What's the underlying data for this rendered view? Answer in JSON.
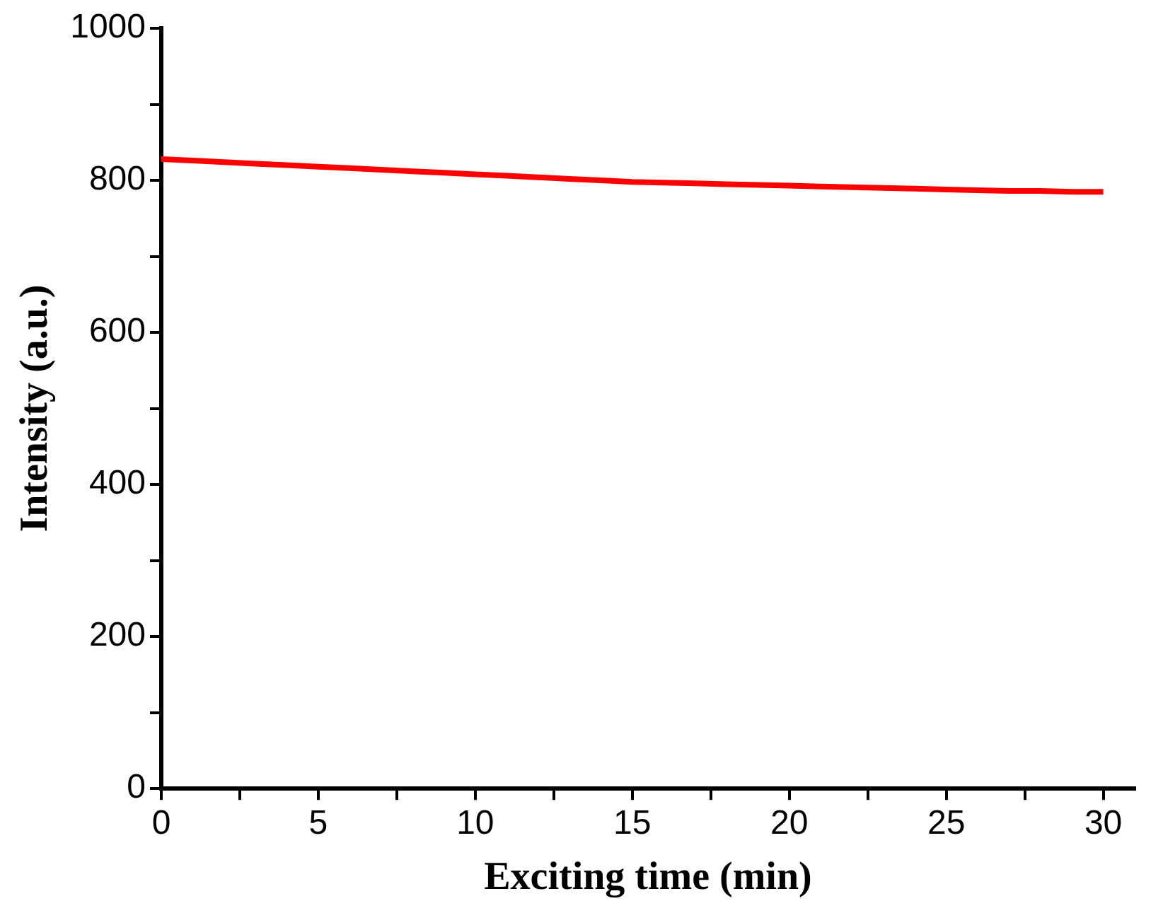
{
  "chart_data": {
    "type": "line",
    "xlabel": "Exciting time (min)",
    "ylabel": "Intensity (a.u.)",
    "x": [
      0,
      1,
      2,
      3,
      4,
      5,
      6,
      7,
      8,
      9,
      10,
      11,
      12,
      13,
      14,
      15,
      16,
      17,
      18,
      19,
      20,
      21,
      22,
      23,
      24,
      25,
      26,
      27,
      28,
      29,
      30
    ],
    "series": [
      {
        "color": "#ff0000",
        "values": [
          828,
          826,
          824,
          822,
          820,
          818,
          816,
          814,
          812,
          810,
          808,
          806,
          804,
          802,
          800,
          798,
          797,
          796,
          795,
          794,
          793,
          792,
          791,
          790,
          789,
          788,
          787,
          786,
          786,
          785,
          785
        ]
      }
    ],
    "xlim": [
      0,
      31
    ],
    "xticks": [
      0,
      {
        "value": 2.5,
        "label": null
      },
      5,
      {
        "value": 7.5,
        "label": null
      },
      10,
      {
        "value": 12.5,
        "label": null
      },
      15,
      {
        "value": 17.5,
        "label": null
      },
      20,
      {
        "value": 22.5,
        "label": null
      },
      25,
      {
        "value": 27.5,
        "label": null
      },
      30
    ],
    "ylim": [
      0,
      1000
    ],
    "yticks": [
      0,
      {
        "value": 100,
        "label": null
      },
      200,
      {
        "value": 300,
        "label": null
      },
      400,
      {
        "value": 500,
        "label": null
      },
      600,
      {
        "value": 700,
        "label": null
      },
      800,
      {
        "value": 900,
        "label": null
      },
      1000
    ],
    "grid": false,
    "legend": false,
    "marker": "none",
    "line_style": "solid"
  }
}
